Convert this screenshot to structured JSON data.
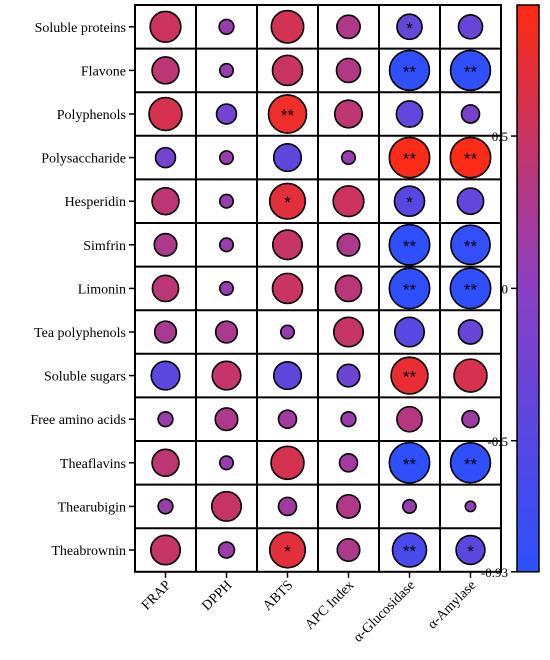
{
  "chart_data": {
    "type": "heatmap",
    "subtype": "correlation-circle-matrix",
    "rows": [
      "Soluble proteins",
      "Flavone",
      "Polyphenols",
      "Polysaccharide",
      "Hesperidin",
      "Simfrin",
      "Limonin",
      "Tea polyphenols",
      "Soluble sugars",
      "Free amino acids",
      "Theaflavins",
      "Thearubigin",
      "Theabrownin"
    ],
    "columns": [
      "FRAP",
      "DPPH",
      "ABTS",
      "APC Index",
      "α-Glucosidase",
      "α-Amylase"
    ],
    "values": [
      [
        0.52,
        0.12,
        0.58,
        0.3,
        -0.35,
        -0.32
      ],
      [
        0.4,
        0.1,
        0.5,
        0.32,
        -0.88,
        -0.88
      ],
      [
        0.6,
        -0.22,
        0.8,
        0.42,
        -0.38,
        -0.18
      ],
      [
        -0.22,
        0.1,
        -0.42,
        0.1,
        0.9,
        0.9
      ],
      [
        0.4,
        0.1,
        0.7,
        0.52,
        -0.5,
        -0.38
      ],
      [
        0.28,
        0.1,
        0.48,
        0.28,
        -0.9,
        -0.85
      ],
      [
        0.38,
        0.1,
        0.5,
        0.38,
        -0.9,
        -0.9
      ],
      [
        0.26,
        0.26,
        0.1,
        0.48,
        -0.48,
        -0.32
      ],
      [
        -0.45,
        0.45,
        -0.42,
        -0.28,
        0.75,
        0.6
      ],
      [
        0.12,
        0.28,
        0.18,
        0.12,
        0.35,
        0.16
      ],
      [
        0.4,
        0.1,
        0.6,
        0.18,
        -0.9,
        -0.88
      ],
      [
        0.12,
        0.48,
        0.18,
        0.3,
        0.1,
        0.06
      ],
      [
        0.48,
        0.14,
        0.7,
        0.28,
        -0.64,
        -0.46
      ]
    ],
    "significance": [
      [
        "",
        "",
        "",
        "",
        "*",
        ""
      ],
      [
        "",
        "",
        "",
        "",
        "**",
        "**"
      ],
      [
        "",
        "",
        "**",
        "",
        "",
        ""
      ],
      [
        "",
        "",
        "",
        "",
        "**",
        "**"
      ],
      [
        "",
        "",
        "*",
        "",
        "*",
        ""
      ],
      [
        "",
        "",
        "",
        "",
        "**",
        "**"
      ],
      [
        "",
        "",
        "",
        "",
        "**",
        "**"
      ],
      [
        "",
        "",
        "",
        "",
        "",
        ""
      ],
      [
        "",
        "",
        "",
        "",
        "**",
        ""
      ],
      [
        "",
        "",
        "",
        "",
        "",
        ""
      ],
      [
        "",
        "",
        "",
        "",
        "**",
        "**"
      ],
      [
        "",
        "",
        "",
        "",
        "",
        ""
      ],
      [
        "",
        "",
        "*",
        "",
        "**",
        "*"
      ]
    ],
    "colorbar": {
      "min": -0.93,
      "max": 0.93,
      "ticks": [
        {
          "value": 0.5,
          "label": "0.5"
        },
        {
          "value": 0,
          "label": "0"
        },
        {
          "value": -0.5,
          "label": "-0.5"
        },
        {
          "value": -0.93,
          "label": "-0.93"
        }
      ],
      "colors": {
        "low": "#2b50ff",
        "mid": "#8a3fc2",
        "high": "#ff2a10"
      }
    },
    "title": "",
    "xlabel": "",
    "ylabel": "",
    "legend_position": "right"
  }
}
